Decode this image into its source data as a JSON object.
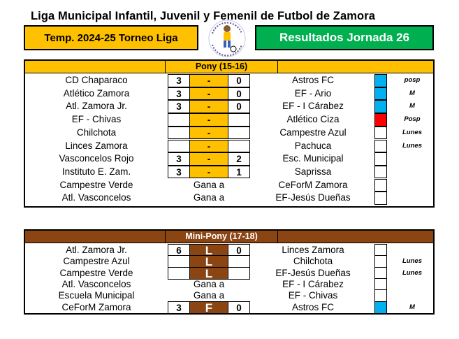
{
  "title": "Liga Municipal Infantil, Juvenil y Femenil de Futbol de Zamora",
  "season_label": "Temp. 2024-25  Torneo Liga",
  "results_label": "Resultados  Jornada 26",
  "colors": {
    "amber": "#FFC000",
    "green": "#00B050",
    "brown": "#8B4513",
    "blue": "#00B0F0",
    "red": "#FF0000"
  },
  "pony": {
    "label": "Pony (15-16)",
    "rows": [
      {
        "home": "CD Chaparaco",
        "hs": "3",
        "mid": "-",
        "as": "0",
        "away": "Astros FC",
        "status": "blue",
        "note": "posp"
      },
      {
        "home": "Atlético Zamora",
        "hs": "3",
        "mid": "-",
        "as": "0",
        "away": "EF - Ario",
        "status": "blue",
        "note": "M"
      },
      {
        "home": "Atl. Zamora Jr.",
        "hs": "3",
        "mid": "-",
        "as": "0",
        "away": "EF - I Cárabez",
        "status": "blue",
        "note": "M"
      },
      {
        "home": "EF - Chivas",
        "hs": "",
        "mid": "-",
        "as": "",
        "away": "Atlético Ciza",
        "status": "red",
        "note": "Posp"
      },
      {
        "home": "Chilchota",
        "hs": "",
        "mid": "-",
        "as": "",
        "away": "Campestre Azul",
        "status": "none",
        "note": "Lunes"
      },
      {
        "home": "Linces Zamora",
        "hs": "",
        "mid": "-",
        "as": "",
        "away": "Pachuca",
        "status": "none",
        "note": "Lunes"
      },
      {
        "home": "Vasconcelos Rojo",
        "hs": "3",
        "mid": "-",
        "as": "2",
        "away": "Esc. Municipal",
        "status": "none",
        "note": ""
      },
      {
        "home": "Instituto E. Zam.",
        "hs": "3",
        "mid": "-",
        "as": "1",
        "away": "Saprissa",
        "status": "none",
        "note": ""
      },
      {
        "home": "Campestre Verde",
        "text": "Gana a",
        "away": "CeForM Zamora",
        "status": "none",
        "note": ""
      },
      {
        "home": "Atl. Vasconcelos",
        "text": "Gana a",
        "away": "EF-Jesús Dueñas",
        "status": "none",
        "note": ""
      }
    ]
  },
  "mini": {
    "label": "Mini-Pony (17-18)",
    "rows": [
      {
        "home": "Atl. Zamora Jr.",
        "hs": "6",
        "mid": "L",
        "as": "0",
        "away": "Linces Zamora",
        "status": "none",
        "note": ""
      },
      {
        "home": "Campestre Azul",
        "hs": "",
        "mid": "L",
        "as": "",
        "away": "Chilchota",
        "status": "none",
        "note": "Lunes"
      },
      {
        "home": "Campestre Verde",
        "hs": "",
        "mid": "L",
        "as": "",
        "away": "EF-Jesús Dueñas",
        "status": "none",
        "note": "Lunes"
      },
      {
        "home": "Atl. Vasconcelos",
        "text": "Gana a",
        "away": "EF - I Cárabez",
        "status": "none",
        "note": ""
      },
      {
        "home": "Escuela Municipal",
        "text": "Gana a",
        "away": "EF - Chivas",
        "status": "none",
        "note": ""
      },
      {
        "home": "CeForM Zamora",
        "hs": "3",
        "mid": "F",
        "as": "0",
        "away": "Astros FC",
        "status": "blue",
        "note": "M"
      }
    ]
  }
}
